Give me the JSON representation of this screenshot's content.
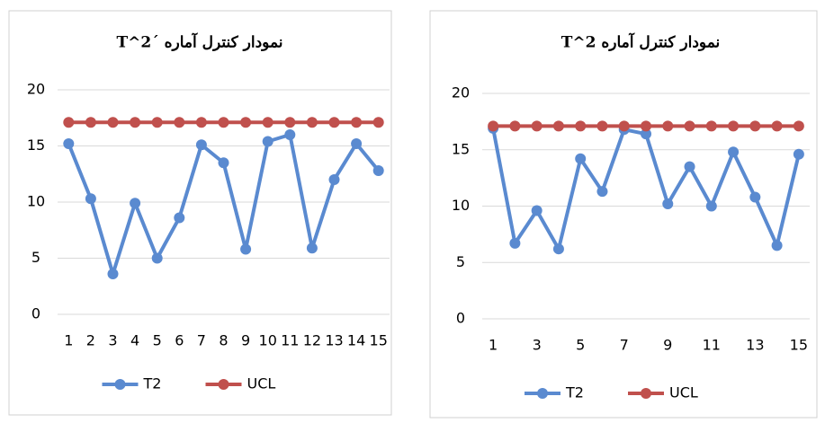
{
  "chart_data": [
    {
      "type": "line",
      "title": "نمودار کنترل آماره ´T^2",
      "categories": [
        1,
        2,
        3,
        4,
        5,
        6,
        7,
        8,
        9,
        10,
        11,
        12,
        13,
        14,
        15
      ],
      "series": [
        {
          "name": "T2",
          "color": "#5a8ad0",
          "values": [
            15.2,
            10.3,
            3.6,
            9.9,
            5.0,
            8.6,
            15.1,
            13.5,
            5.8,
            15.4,
            16.0,
            5.9,
            12.0,
            15.2,
            12.8
          ]
        },
        {
          "name": "UCL",
          "color": "#c0504d",
          "values": [
            17.1,
            17.1,
            17.1,
            17.1,
            17.1,
            17.1,
            17.1,
            17.1,
            17.1,
            17.1,
            17.1,
            17.1,
            17.1,
            17.1,
            17.1
          ]
        }
      ],
      "ylim": [
        0,
        20
      ],
      "yticks": [
        0,
        5,
        10,
        15,
        20
      ],
      "grid": true,
      "legend": "bottom"
    },
    {
      "type": "line",
      "title": "نمودار کنترل آماره T^2",
      "categories": [
        1,
        null,
        3,
        null,
        5,
        null,
        7,
        null,
        9,
        null,
        11,
        null,
        13,
        null,
        15
      ],
      "series": [
        {
          "name": "T2",
          "color": "#5a8ad0",
          "values": [
            16.9,
            6.7,
            9.6,
            6.2,
            14.2,
            11.3,
            16.8,
            16.4,
            10.2,
            13.5,
            10.0,
            14.8,
            10.8,
            6.5,
            14.6
          ]
        },
        {
          "name": "UCL",
          "color": "#c0504d",
          "values": [
            17.1,
            17.1,
            17.1,
            17.1,
            17.1,
            17.1,
            17.1,
            17.1,
            17.1,
            17.1,
            17.1,
            17.1,
            17.1,
            17.1,
            17.1
          ]
        }
      ],
      "ylim": [
        0,
        20
      ],
      "yticks": [
        0,
        5,
        10,
        15,
        20
      ],
      "grid": true,
      "legend": "bottom"
    }
  ]
}
